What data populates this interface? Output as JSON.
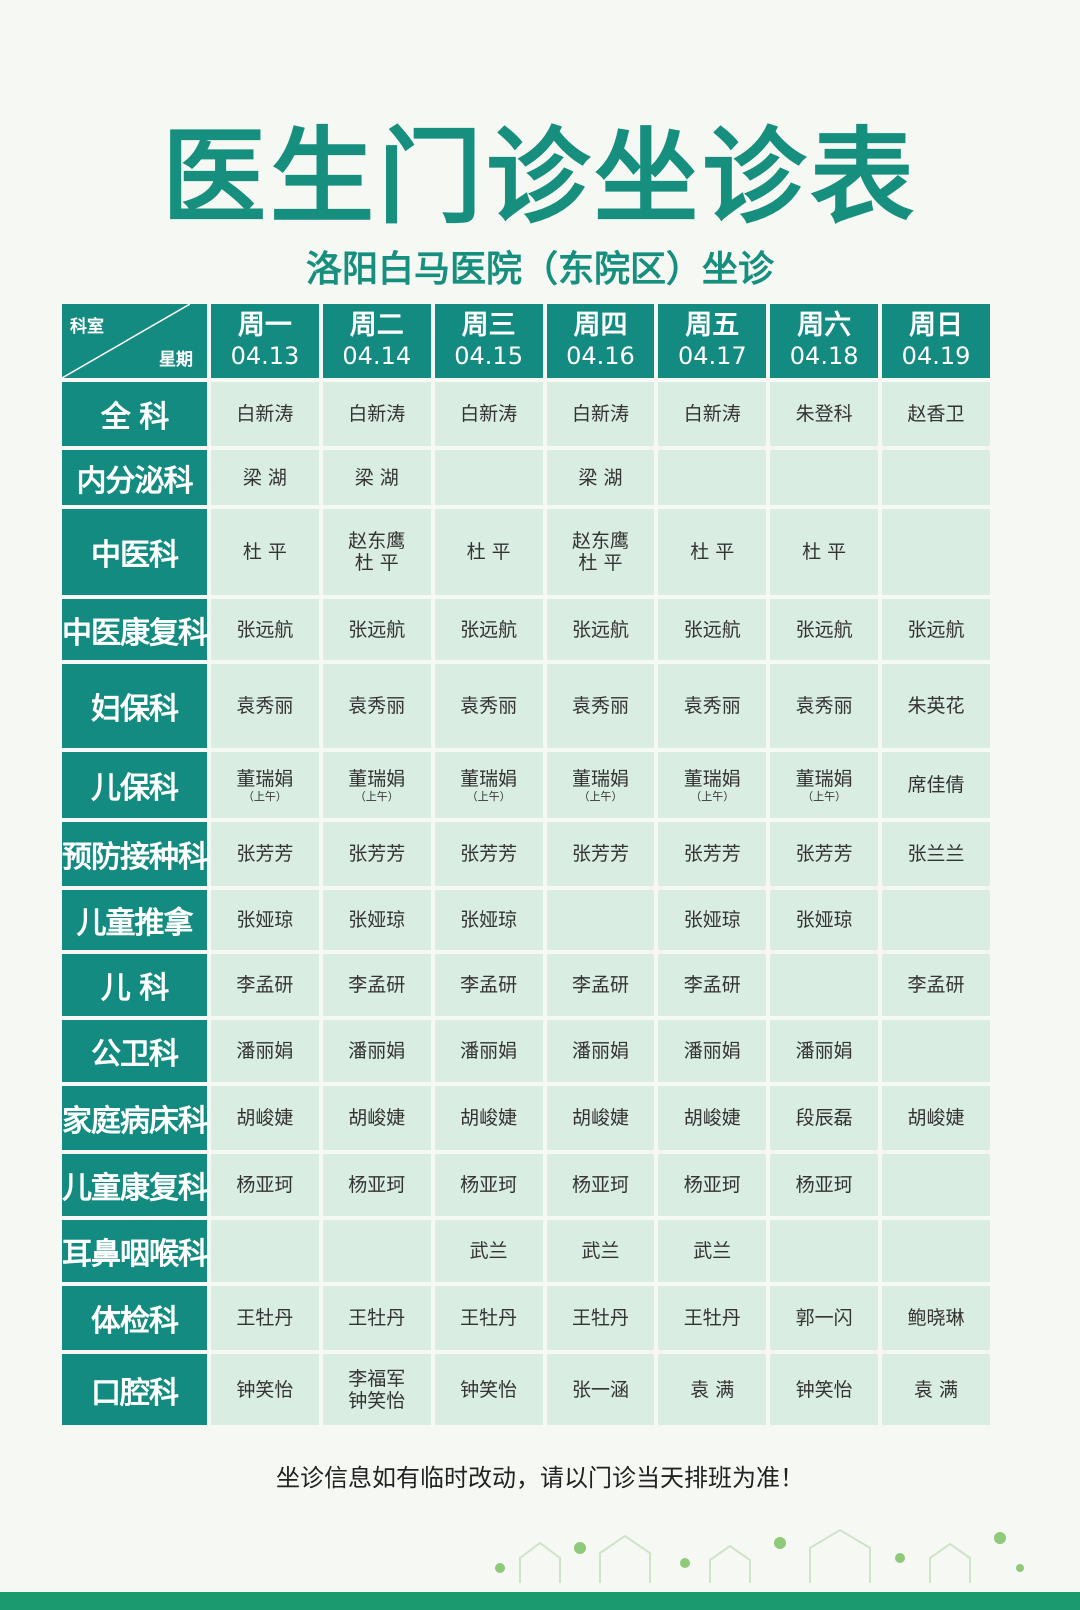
{
  "title": "医生门诊坐诊表",
  "subtitle": "洛阳白马医院（东院区）坐诊",
  "table": {
    "corner": {
      "top": "科室",
      "bottom": "星期"
    },
    "days": [
      {
        "day": "周一",
        "date": "04.13"
      },
      {
        "day": "周二",
        "date": "04.14"
      },
      {
        "day": "周三",
        "date": "04.15"
      },
      {
        "day": "周四",
        "date": "04.16"
      },
      {
        "day": "周五",
        "date": "04.17"
      },
      {
        "day": "周六",
        "date": "04.18"
      },
      {
        "day": "周日",
        "date": "04.19"
      }
    ],
    "rows": [
      {
        "dept": "全 科",
        "cells": [
          "白新涛",
          "白新涛",
          "白新涛",
          "白新涛",
          "白新涛",
          "朱登科",
          "赵香卫"
        ]
      },
      {
        "dept": "内分泌科",
        "cells": [
          "梁 湖",
          "梁 湖",
          "",
          "梁 湖",
          "",
          "",
          ""
        ]
      },
      {
        "dept": "中医科",
        "cells": [
          "杜 平",
          "赵东鹰\n杜  平",
          "杜 平",
          "赵东鹰\n杜  平",
          "杜 平",
          "杜 平",
          ""
        ]
      },
      {
        "dept": "中医康复科",
        "cells": [
          "张远航",
          "张远航",
          "张远航",
          "张远航",
          "张远航",
          "张远航",
          "张远航"
        ]
      },
      {
        "dept": "妇保科",
        "cells": [
          "袁秀丽",
          "袁秀丽",
          "袁秀丽",
          "袁秀丽",
          "袁秀丽",
          "袁秀丽",
          "朱英花"
        ]
      },
      {
        "dept": "儿保科",
        "cells": [
          {
            "name": "董瑞娟",
            "note": "（上午）"
          },
          {
            "name": "董瑞娟",
            "note": "（上午）"
          },
          {
            "name": "董瑞娟",
            "note": "（上午）"
          },
          {
            "name": "董瑞娟",
            "note": "（上午）"
          },
          {
            "name": "董瑞娟",
            "note": "（上午）"
          },
          {
            "name": "董瑞娟",
            "note": "（上午）"
          },
          "席佳倩"
        ]
      },
      {
        "dept": "预防接种科",
        "cells": [
          "张芳芳",
          "张芳芳",
          "张芳芳",
          "张芳芳",
          "张芳芳",
          "张芳芳",
          "张兰兰"
        ]
      },
      {
        "dept": "儿童推拿",
        "cells": [
          "张娅琼",
          "张娅琼",
          "张娅琼",
          "",
          "张娅琼",
          "张娅琼",
          ""
        ]
      },
      {
        "dept": "儿  科",
        "cells": [
          "李孟研",
          "李孟研",
          "李孟研",
          "李孟研",
          "李孟研",
          "",
          "李孟研"
        ]
      },
      {
        "dept": "公卫科",
        "cells": [
          "潘丽娟",
          "潘丽娟",
          "潘丽娟",
          "潘丽娟",
          "潘丽娟",
          "潘丽娟",
          ""
        ]
      },
      {
        "dept": "家庭病床科",
        "cells": [
          "胡峻婕",
          "胡峻婕",
          "胡峻婕",
          "胡峻婕",
          "胡峻婕",
          "段辰磊",
          "胡峻婕"
        ]
      },
      {
        "dept": "儿童康复科",
        "cells": [
          "杨亚珂",
          "杨亚珂",
          "杨亚珂",
          "杨亚珂",
          "杨亚珂",
          "杨亚珂",
          ""
        ]
      },
      {
        "dept": "耳鼻咽喉科",
        "cells": [
          "",
          "",
          "武兰",
          "武兰",
          "武兰",
          "",
          ""
        ]
      },
      {
        "dept": "体检科",
        "cells": [
          "王牡丹",
          "王牡丹",
          "王牡丹",
          "王牡丹",
          "王牡丹",
          "郭一闪",
          "鲍晓琳"
        ]
      },
      {
        "dept": "口腔科",
        "cells": [
          "钟笑怡",
          "李福军\n钟笑怡",
          "钟笑怡",
          "张一涵",
          "袁 满",
          "钟笑怡",
          "袁 满"
        ]
      }
    ]
  },
  "footer": "坐诊信息如有临时改动，请以门诊当天排班为准！",
  "colors": {
    "header": "#138b80",
    "cell": "#d9ede2",
    "title": "#178f7e",
    "background": "#f6f8f3"
  }
}
